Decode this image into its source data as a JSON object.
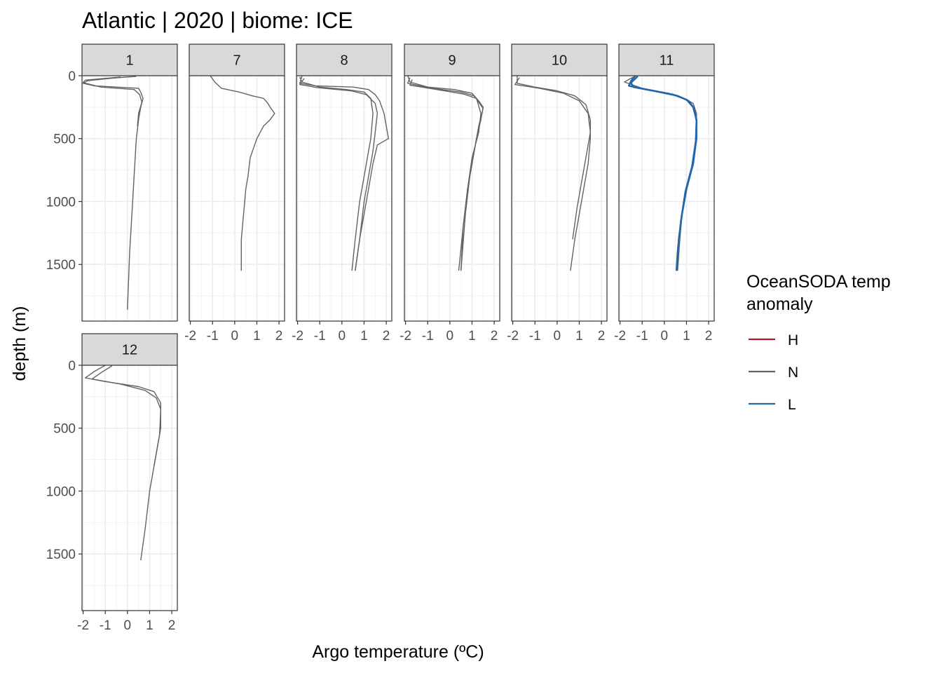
{
  "chart_data": {
    "type": "line",
    "title": "Atlantic | 2020 | biome: ICE",
    "xlabel": "Argo temperature (ºC)",
    "ylabel": "depth (m)",
    "xlim": [
      -2.05,
      2.25
    ],
    "ylim": [
      0,
      1950
    ],
    "y_reversed": true,
    "x_ticks": [
      -2,
      -1,
      0,
      1,
      2
    ],
    "x_tick_labels": [
      "-2",
      "-1",
      "0",
      "1",
      "2"
    ],
    "y_ticks": [
      0,
      500,
      1000,
      1500
    ],
    "y_tick_labels": [
      "0",
      "500",
      "1000",
      "1500"
    ],
    "grid": true,
    "legend": {
      "title": "OceanSODA temp\nanomaly",
      "position": "right",
      "entries": [
        {
          "label": "H",
          "color": "#b2182b"
        },
        {
          "label": "N",
          "color": "#636363"
        },
        {
          "label": "L",
          "color": "#2166ac"
        }
      ]
    },
    "panels": [
      {
        "label": "1",
        "series": [
          {
            "anomaly": "N",
            "points": [
              [
                0.4,
                5
              ],
              [
                -0.7,
                20
              ],
              [
                -1.8,
                40
              ],
              [
                -2.0,
                60
              ],
              [
                -1.5,
                80
              ],
              [
                0.5,
                100
              ],
              [
                0.6,
                130
              ],
              [
                0.7,
                180
              ],
              [
                0.6,
                250
              ],
              [
                0.5,
                350
              ],
              [
                0.4,
                500
              ],
              [
                0.3,
                800
              ],
              [
                0.2,
                1100
              ],
              [
                0.1,
                1400
              ],
              [
                0.0,
                1860
              ]
            ]
          },
          {
            "anomaly": "N",
            "points": [
              [
                -0.3,
                10
              ],
              [
                -1.9,
                35
              ],
              [
                -2.0,
                55
              ],
              [
                -1.2,
                90
              ],
              [
                0.3,
                110
              ],
              [
                0.55,
                150
              ],
              [
                0.65,
                210
              ],
              [
                0.5,
                300
              ],
              [
                0.45,
                400
              ]
            ]
          }
        ]
      },
      {
        "label": "7",
        "series": [
          {
            "anomaly": "N",
            "points": [
              [
                -1.1,
                0
              ],
              [
                -0.9,
                50
              ],
              [
                -0.6,
                100
              ],
              [
                0.2,
                130
              ],
              [
                0.8,
                160
              ],
              [
                1.3,
                180
              ],
              [
                1.5,
                220
              ],
              [
                1.6,
                250
              ],
              [
                1.8,
                300
              ],
              [
                1.6,
                350
              ],
              [
                1.3,
                400
              ],
              [
                1.0,
                500
              ],
              [
                0.7,
                650
              ],
              [
                0.6,
                800
              ],
              [
                0.5,
                900
              ],
              [
                0.4,
                1100
              ],
              [
                0.3,
                1300
              ],
              [
                0.3,
                1550
              ]
            ]
          }
        ]
      },
      {
        "label": "8",
        "series": [
          {
            "anomaly": "N",
            "points": [
              [
                -1.8,
                0
              ],
              [
                -1.9,
                60
              ],
              [
                -1.2,
                80
              ],
              [
                0.5,
                90
              ],
              [
                1.2,
                110
              ],
              [
                1.5,
                150
              ],
              [
                1.7,
                200
              ],
              [
                1.9,
                300
              ],
              [
                2.1,
                500
              ],
              [
                1.6,
                550
              ],
              [
                1.4,
                700
              ],
              [
                1.2,
                900
              ],
              [
                1.0,
                1100
              ],
              [
                0.8,
                1300
              ],
              [
                0.6,
                1550
              ]
            ]
          },
          {
            "anomaly": "N",
            "points": [
              [
                -1.9,
                10
              ],
              [
                -1.8,
                50
              ],
              [
                -1.0,
                90
              ],
              [
                0.2,
                110
              ],
              [
                1.0,
                130
              ],
              [
                1.3,
                180
              ],
              [
                1.4,
                300
              ],
              [
                1.3,
                500
              ],
              [
                1.2,
                600
              ],
              [
                1.0,
                800
              ],
              [
                0.8,
                1000
              ],
              [
                0.6,
                1300
              ],
              [
                0.45,
                1550
              ]
            ]
          },
          {
            "anomaly": "N",
            "points": [
              [
                -1.7,
                20
              ],
              [
                -1.9,
                70
              ],
              [
                -1.1,
                95
              ],
              [
                0.4,
                120
              ],
              [
                1.1,
                150
              ],
              [
                1.5,
                220
              ],
              [
                1.6,
                300
              ],
              [
                1.5,
                450
              ],
              [
                1.4,
                600
              ],
              [
                1.2,
                800
              ],
              [
                1.0,
                1000
              ],
              [
                0.8,
                1300
              ],
              [
                0.6,
                1550
              ]
            ]
          }
        ]
      },
      {
        "label": "9",
        "series": [
          {
            "anomaly": "N",
            "points": [
              [
                -1.9,
                0
              ],
              [
                -1.8,
                50
              ],
              [
                -1.0,
                90
              ],
              [
                0.2,
                110
              ],
              [
                1.0,
                140
              ],
              [
                1.3,
                200
              ],
              [
                1.5,
                250
              ],
              [
                1.4,
                350
              ],
              [
                1.2,
                500
              ],
              [
                1.0,
                700
              ],
              [
                0.8,
                900
              ],
              [
                0.6,
                1200
              ],
              [
                0.5,
                1550
              ]
            ]
          },
          {
            "anomaly": "N",
            "points": [
              [
                -1.8,
                15
              ],
              [
                -1.9,
                60
              ],
              [
                -0.8,
                100
              ],
              [
                0.5,
                130
              ],
              [
                1.1,
                160
              ],
              [
                1.5,
                260
              ],
              [
                1.3,
                400
              ],
              [
                1.1,
                600
              ],
              [
                0.9,
                800
              ],
              [
                0.7,
                1100
              ],
              [
                0.5,
                1550
              ]
            ]
          },
          {
            "anomaly": "N",
            "points": [
              [
                -1.7,
                30
              ],
              [
                -1.8,
                75
              ],
              [
                -0.6,
                110
              ],
              [
                0.6,
                145
              ],
              [
                1.2,
                180
              ],
              [
                1.4,
                300
              ],
              [
                1.3,
                450
              ],
              [
                1.0,
                650
              ],
              [
                0.8,
                900
              ],
              [
                0.6,
                1200
              ],
              [
                0.4,
                1550
              ]
            ]
          }
        ]
      },
      {
        "label": "10",
        "series": [
          {
            "anomaly": "N",
            "points": [
              [
                -1.8,
                0
              ],
              [
                -1.8,
                60
              ],
              [
                -1.0,
                90
              ],
              [
                0.0,
                120
              ],
              [
                0.8,
                160
              ],
              [
                1.3,
                230
              ],
              [
                1.5,
                350
              ],
              [
                1.5,
                500
              ],
              [
                1.4,
                700
              ],
              [
                1.2,
                900
              ],
              [
                1.0,
                1100
              ],
              [
                0.8,
                1300
              ],
              [
                0.6,
                1550
              ]
            ]
          },
          {
            "anomaly": "N",
            "points": [
              [
                -1.7,
                15
              ],
              [
                -1.9,
                70
              ],
              [
                -0.8,
                100
              ],
              [
                0.3,
                140
              ],
              [
                1.0,
                200
              ],
              [
                1.4,
                300
              ],
              [
                1.5,
                450
              ],
              [
                1.3,
                650
              ],
              [
                1.1,
                850
              ],
              [
                0.9,
                1050
              ],
              [
                0.7,
                1300
              ]
            ]
          }
        ]
      },
      {
        "label": "11",
        "series": [
          {
            "anomaly": "N",
            "points": [
              [
                -1.4,
                10
              ],
              [
                -1.8,
                50
              ],
              [
                -1.0,
                100
              ],
              [
                0.2,
                140
              ],
              [
                0.9,
                180
              ],
              [
                1.3,
                220
              ],
              [
                1.45,
                300
              ],
              [
                1.45,
                500
              ],
              [
                1.3,
                700
              ],
              [
                1.0,
                900
              ],
              [
                0.8,
                1100
              ],
              [
                0.7,
                1300
              ],
              [
                0.6,
                1550
              ]
            ]
          },
          {
            "anomaly": "L",
            "points": [
              [
                -1.3,
                0
              ],
              [
                -1.5,
                40
              ],
              [
                -1.6,
                80
              ],
              [
                -0.8,
                110
              ],
              [
                0.4,
                150
              ],
              [
                1.0,
                190
              ],
              [
                1.3,
                250
              ],
              [
                1.45,
                350
              ],
              [
                1.45,
                500
              ],
              [
                1.3,
                700
              ],
              [
                1.0,
                900
              ],
              [
                0.8,
                1100
              ],
              [
                0.65,
                1300
              ],
              [
                0.55,
                1550
              ]
            ]
          },
          {
            "anomaly": "L",
            "points": [
              [
                -1.2,
                5
              ],
              [
                -1.5,
                55
              ],
              [
                -1.4,
                90
              ],
              [
                -0.5,
                120
              ],
              [
                0.6,
                160
              ],
              [
                1.1,
                200
              ],
              [
                1.35,
                260
              ],
              [
                1.45,
                360
              ],
              [
                1.42,
                520
              ],
              [
                1.25,
                720
              ],
              [
                0.95,
                920
              ],
              [
                0.75,
                1150
              ],
              [
                0.6,
                1400
              ],
              [
                0.55,
                1550
              ]
            ]
          }
        ]
      },
      {
        "label": "12",
        "series": [
          {
            "anomaly": "N",
            "points": [
              [
                -1.0,
                0
              ],
              [
                -1.5,
                50
              ],
              [
                -1.9,
                100
              ],
              [
                -1.0,
                130
              ],
              [
                0.5,
                170
              ],
              [
                1.2,
                210
              ],
              [
                1.5,
                300
              ],
              [
                1.5,
                500
              ],
              [
                1.3,
                700
              ],
              [
                1.0,
                1000
              ],
              [
                0.8,
                1300
              ],
              [
                0.6,
                1550
              ]
            ]
          },
          {
            "anomaly": "N",
            "points": [
              [
                -0.7,
                5
              ],
              [
                -1.2,
                60
              ],
              [
                -1.6,
                110
              ],
              [
                -0.3,
                150
              ],
              [
                0.8,
                200
              ],
              [
                1.3,
                260
              ],
              [
                1.5,
                350
              ],
              [
                1.45,
                550
              ],
              [
                1.2,
                800
              ]
            ]
          }
        ]
      }
    ]
  }
}
